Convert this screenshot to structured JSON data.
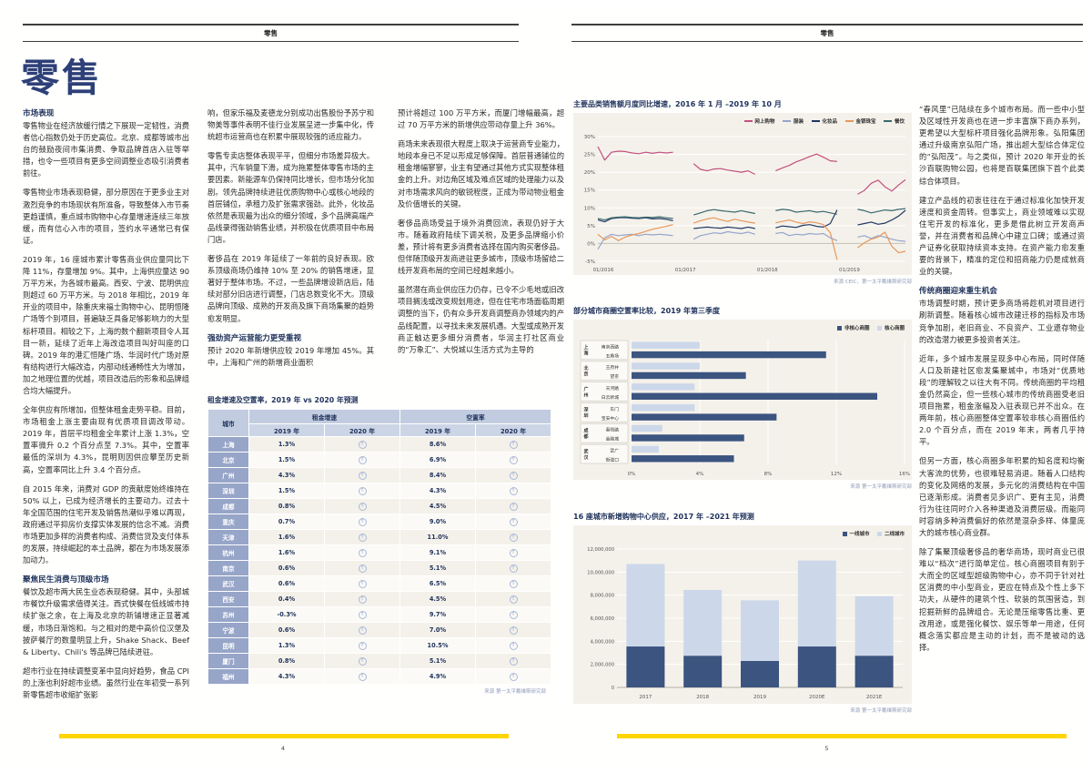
{
  "left_page": {
    "header": "零售",
    "title": "零售",
    "page_number": "4",
    "columns": [
      {
        "blocks": [
          {
            "h": "市场表现"
          },
          {
            "p": "零售物业在经济放缓行情之下展现一定韧性，消费者信心指数仍处于历史高位。北京、成都等城市出台的鼓励夜间市集消费、争取品牌首店入驻等举措，也令一些项目有更多空间调整业态吸引消费者前往。"
          },
          {
            "p": "零售物业市场表现稳健，部分原因在于更多业主对激烈竞争的市场现状有所准备，导致整体入市节奏更趋谨慎，重点城市购物中心存量增速连续三年放缓，而有信心入市的项目，签约水平通常已有保证。"
          },
          {
            "p": "2019 年，16 座城市累计零售商业供应量同比下降 11%，存量增加 9%。其中，上海供应量达 90 万平方米，为各城市最高。西安、宁波、昆明供应则超过 60 万平方米。与 2018 年相比，2019 年开业的项目中，除重庆来福士购物中心、昆明恒隆广场等个别项目，普遍缺乏具备足够影响力的大型标杆项目。相较之下，上海的数个翻新项目令人耳目一新，延续了近年上海改造项目叫好叫座的口碑。2019 年的港汇恒隆广场、华润时代广场对原有结构进行大幅改造，内部动线通畅性大为增加，加之地理位置的优越，项目改造后的形象和品牌组合均大幅提升。"
          },
          {
            "p": "全年供应有所增加，但整体租金走势平稳。目前，市场租金上涨主要由现有优质项目调改带动。2019 年，首层平均租金全年累计上涨 1.3%，空置率微升 0.2 个百分点至 7.3%。其中，空置率最低的深圳为 4.3%，昆明则因供应攀至历史新高，空置率同比上升 3.4 个百分点。"
          },
          {
            "p": "自 2015 年来，消费对 GDP 的贡献度始终维持在 50% 以上，已成为经济增长的主要动力。过去十年全国范围的住宅开发及销售热潮似乎难以再现，政府通过平抑房价支撑实体发展的信念不减。消费市场更加多样的消费者构成、消费信贷及支付体系的发展，持续崛起的本土品牌，都在为市场发展添加动力。"
          },
          {
            "h": "聚焦民生消费与顶级市场"
          },
          {
            "p": "餐饮及超市两大民生业态表现稳健。其中，头部城市餐饮升级需求值得关注。西式快餐在低线城市持续扩张之余，在上海及北京的新铺增速正显著减缓，市场日渐饱和。与之相对的是中高价位汉堡及披萨餐厅的数量明显上升，Shake Shack、Beef & Liberty、Chili's 等品牌已陆续进驻。"
          },
          {
            "p": "超市行业在持续调整变革中显向好趋势，食品 CPI 的上涨也利好超市业绩。虽然行业在年初受一系列新零售超市收缩扩张影"
          }
        ]
      },
      {
        "blocks": [
          {
            "p": "响，但家乐福及麦德龙分别成功出售股份予苏宁和物美等事件表明不佳行业发展呈进一步集中化，传统超市运营商也在积累中展现较强的适应能力。"
          },
          {
            "p": "零售专卖店整体表现平平，但细分市场差异极大。其中，汽车销量下滑，成为拖累整体零售市场的主要因素。新能源车仍保持同比增长，但市场分化加剧。领先品牌持续进驻优质购物中心或核心地段的首层铺位，承租力及扩张需求强劲。此外，化妆品依然是表现最为出众的细分领域，多个品牌高端产品线录得强劲销售业绩，并积极在优质项目中布局门店。"
          },
          {
            "p": "奢侈品在 2019 年延续了一年前的良好表现。欧系顶级商场仍维持 10% 至 20% 的销售增速，显著好于整体市场。不过，一些品牌增设新店后，陆续对部分旧店进行调整，门店总数变化不大。顶级品牌向顶级、成熟的开发商及旗下商场集聚的趋势愈发明显。"
          },
          {
            "h": "强劲资产运营能力更受重视"
          },
          {
            "p": "预计 2020 年新增供应较 2019 年增加 45%。其中，上海和广州的新增商业面积"
          }
        ]
      },
      {
        "blocks": [
          {
            "p": "预计将超过 100 万平方米，而厦门增幅最高，超过 70 万平方米的新增供应带动存量上升 36%。"
          },
          {
            "p": "商场未来表现很大程度上取决于运营商专业能力，地段本身已不足以形成足够保障。首层普通铺位的租金增幅寥寥，业主有望通过其他方式实现整体租金的上升。对边角区域及难点区域的处理能力以及对市场需求风向的敏锐程度，正成为带动物业租金及价值增长的关键。"
          },
          {
            "p": "奢侈品商场受益于境外消费回流，表现仍好于大市。随着政府陆续下调关税，及更多品牌缩小价差，预计将有更多消费者选择在国内购买奢侈品。但伴随顶级开发商进驻更多城市，顶级市场留给二线开发商布局的空间已经越来越小。"
          },
          {
            "p": "虽然潜在商业供应压力仍存，已令不少毛地或旧改项目搁浅或改变规划用途，但在住宅市场面临周期调整的当下，仍有众多开发商调整商办领域内的产品线配置，以寻找未来发展机遇。大型或成熟开发商正触达更多细分消费者，华润主打社区商业的“万象汇”、大悦城以生活方式为主导的"
          }
        ]
      }
    ],
    "table": {
      "title": "租金增速及空置率，2019 年 vs 2020 年预测",
      "col_city": "城市",
      "group_rent": "租金增速",
      "group_vacancy": "空置率",
      "year_2019": "2019 年",
      "year_2020": "2020 年",
      "forecast_arrow": "↑",
      "source": "来源 第一太平戴维斯研究部",
      "rows": [
        {
          "city": "上海",
          "rent_2019": "1.3%",
          "vac_2019": "8.6%"
        },
        {
          "city": "北京",
          "rent_2019": "1.5%",
          "vac_2019": "6.9%"
        },
        {
          "city": "广州",
          "rent_2019": "4.3%",
          "vac_2019": "8.4%"
        },
        {
          "city": "深圳",
          "rent_2019": "1.5%",
          "vac_2019": "4.3%"
        },
        {
          "city": "成都",
          "rent_2019": "0.8%",
          "vac_2019": "4.5%"
        },
        {
          "city": "重庆",
          "rent_2019": "0.7%",
          "vac_2019": "9.0%"
        },
        {
          "city": "天津",
          "rent_2019": "1.6%",
          "vac_2019": "11.0%"
        },
        {
          "city": "杭州",
          "rent_2019": "1.6%",
          "vac_2019": "9.1%"
        },
        {
          "city": "南京",
          "rent_2019": "0.6%",
          "vac_2019": "5.1%"
        },
        {
          "city": "武汉",
          "rent_2019": "0.6%",
          "vac_2019": "6.5%"
        },
        {
          "city": "西安",
          "rent_2019": "0.4%",
          "vac_2019": "4.5%"
        },
        {
          "city": "苏州",
          "rent_2019": "-0.3%",
          "vac_2019": "9.7%"
        },
        {
          "city": "宁波",
          "rent_2019": "0.6%",
          "vac_2019": "7.0%"
        },
        {
          "city": "昆明",
          "rent_2019": "1.3%",
          "vac_2019": "10.5%"
        },
        {
          "city": "厦门",
          "rent_2019": "0.8%",
          "vac_2019": "5.1%"
        },
        {
          "city": "福州",
          "rent_2019": "4.3%",
          "vac_2019": "4.9%"
        }
      ]
    }
  },
  "right_page": {
    "header": "零售",
    "page_number": "5",
    "column_blocks": [
      {
        "p": "“春风里”已陆续在多个城市布局。而一些中小型及区域性开发商也在进一步丰富旗下商办系列，更希望以大型标杆项目强化品牌形象。弘阳集团通过升级南京弘阳广场，推出超大型综合体定位的“弘阳茂”。与之类似，预计 2020 年开业的长沙百联购物公园，也将是百联集团旗下首个此类综合体项目。"
      },
      {
        "p": "建立产品线的初衷往往在于通过标准化加快开发速度和资金周转。但事实上，商业领域难以实现住宅开发的标准化，更多是借此树立开发商声誉，并在消费者和品牌心中建立口碑；或通过资产证券化获取持续资本支持。在资产能力愈发重要的背景下，精准的定位和招商能力仍是成就商业的关键。"
      },
      {
        "h": "传统商圈迎来重生机会"
      },
      {
        "p": "市场调整时期，预计更多商场将趁机对项目进行刷新调整。随着核心城市改建迁移的指标及市场竞争加剧，老旧商业、不良资产、工业遗存物业的改造潜力被更多投资者关注。"
      },
      {
        "p": "近年，多个城市发展呈现多中心布局，同时伴随人口及新建社区愈发集聚城中，市场对“优质地段”的理解较之以往大有不同。传统商圈的平均租金仍然高企，但一些核心城市的传统商圈受老旧项目拖累，租金涨幅及入驻表现已并不出众。在两年前，核心商圈整体空置率较非核心商圈低约 2.0 个百分点，而在 2019 年末，两者几乎持平。"
      },
      {
        "p": "但另一方面，核心商圈多年积累的知名度和均衡大客流的优势，也很难轻易消退。随着人口结构的变化及网络的发展，多元化的消费结构在中国已逐渐形成。消费者见多识广、更有主见，消费行为往往同时介入各种渠道及消费层级。而能同时容纳多种消费偏好的依然是混杂多样、体量庞大的城市核心商业群。"
      },
      {
        "p": "除了集聚顶级奢侈品的奢华商场，现时商业已很难以“档次”进行简单定位。核心商圈项目有别于大而全的区域型超级购物中心，亦不同于针对社区消费的中小型商业，更应在特点及个性上多下功夫，从硬件的建筑个性、软装的氛围营造，到挖掘新鲜的品牌组合。无论是压缩零售比重、更改用途，或是强化餐饮、娱乐等单一用途，任何概念落实都应是主动的计划，而不是被动的选择。"
      }
    ]
  },
  "chart_data": [
    {
      "type": "line",
      "title": "主要品类销售额月度同比增速，2016 年 1 月 –2019 年 10 月",
      "source": "来源 CEIC，第一太平戴维斯研究部",
      "ylim": [
        -5,
        30
      ],
      "yticks": [
        30,
        25,
        20,
        15,
        10,
        5,
        0,
        -5
      ],
      "x_count": 46,
      "xticks": [
        {
          "i": 0,
          "label": "01/2016"
        },
        {
          "i": 12,
          "label": "01/2017"
        },
        {
          "i": 24,
          "label": "01/2018"
        },
        {
          "i": 36,
          "label": "01/2019"
        }
      ],
      "series": [
        {
          "name": "网上购物",
          "color": "#c2527e",
          "values": [
            27.2,
            23.4,
            25.6,
            25.9,
            25.8,
            25.4,
            25.2,
            25.6,
            25.3,
            25.6,
            25.4,
            25.6,
            null,
            null,
            22.4,
            20.8,
            20.4,
            20.9,
            21.0,
            20.6,
            20.3,
            20.0,
            20.4,
            19.4,
            null,
            null,
            20.4,
            21.2,
            21.9,
            22.9,
            23.6,
            24.4,
            25.1,
            24.2,
            23.2,
            23.0,
            null,
            null,
            13.8,
            14.9,
            16.9,
            17.8,
            15.9,
            14.7,
            16.4,
            17.9
          ]
        },
        {
          "name": "服装",
          "color": "#94a5cc",
          "values": [
            -1.6,
            1.6,
            2.6,
            2.2,
            2.4,
            2.6,
            2.2,
            2.6,
            2.4,
            2.6,
            2.4,
            2.2,
            null,
            null,
            1.2,
            2.2,
            2.6,
            3.0,
            2.8,
            3.3,
            3.0,
            2.8,
            3.2,
            2.6,
            null,
            null,
            2.8,
            3.1,
            2.2,
            2.6,
            2.4,
            2.8,
            2.6,
            2.8,
            1.6,
            0.8,
            null,
            null,
            1.8,
            2.2,
            1.4,
            2.2,
            1.8,
            1.2,
            0.8,
            0.6
          ]
        },
        {
          "name": "化妆品",
          "color": "#1f3864",
          "values": [
            6.6,
            6.1,
            7.0,
            7.2,
            7.3,
            7.1,
            7.0,
            7.2,
            6.9,
            7.0,
            6.8,
            6.4,
            null,
            null,
            4.2,
            4.4,
            4.6,
            4.4,
            4.3,
            4.6,
            4.4,
            4.2,
            4.6,
            4.2,
            null,
            null,
            4.4,
            4.9,
            4.7,
            4.5,
            5.1,
            5.3,
            4.8,
            4.6,
            5.6,
            9.4,
            null,
            null,
            5.2,
            5.6,
            6.0,
            5.4,
            5.7,
            6.6,
            7.7,
            9.3
          ]
        },
        {
          "name": "金银珠宝",
          "color": "#e6985c",
          "values": [
            2.6,
            1.0,
            2.0,
            0.8,
            1.8,
            2.4,
            2.8,
            3.4,
            4.0,
            4.4,
            4.8,
            5.3,
            null,
            null,
            5.7,
            6.4,
            6.9,
            7.2,
            6.6,
            6.2,
            6.8,
            6.4,
            6.0,
            5.7,
            null,
            null,
            5.8,
            6.2,
            6.6,
            6.0,
            5.6,
            6.1,
            5.8,
            5.3,
            3.0,
            -4.6,
            null,
            null,
            -1.2,
            0.2,
            1.2,
            1.8,
            3.2,
            -0.8,
            -2.6,
            -2.2
          ]
        },
        {
          "name": "餐饮",
          "color": "#3a6a6e",
          "values": [
            7.0,
            6.6,
            7.2,
            7.4,
            7.5,
            7.3,
            7.2,
            7.4,
            7.3,
            7.5,
            7.2,
            7.0,
            null,
            null,
            8.0,
            8.6,
            9.2,
            9.5,
            9.2,
            9.0,
            8.8,
            9.2,
            8.8,
            8.4,
            null,
            null,
            9.2,
            9.6,
            9.4,
            8.8,
            9.0,
            9.2,
            8.8,
            9.0,
            8.6,
            8.2,
            null,
            null,
            9.6,
            9.2,
            8.6,
            9.0,
            9.4,
            9.2,
            9.6,
            9.8
          ]
        }
      ]
    },
    {
      "type": "bar-horizontal-grouped",
      "title": "部分城市商圈空置率比较，2019 年第三季度",
      "source": "来源 第一太平戴维斯研究部",
      "xmax": 16,
      "x_suffix": "%",
      "xticks": [
        0,
        4,
        8,
        12,
        16
      ],
      "legend": [
        {
          "name": "非核心商圈",
          "color": "#3b5480"
        },
        {
          "name": "核心商圈",
          "color": "#ccd8ea"
        }
      ],
      "groups": [
        {
          "city": "上海",
          "core_label": "南京西路",
          "core": 4.0,
          "noncore_label": "五角场",
          "noncore": 11.4
        },
        {
          "city": "北京",
          "core_label": "王府井",
          "core": 4.0,
          "noncore_label": "望京",
          "noncore": 6.7
        },
        {
          "city": "广州",
          "core_label": "天河路",
          "core": 3.7,
          "noncore_label": "白云新城",
          "noncore": 14.4
        },
        {
          "city": "深圳",
          "core_label": "东门",
          "core": 3.7,
          "noncore_label": "宝安中心",
          "noncore": 8.5
        },
        {
          "city": "成都",
          "core_label": "春熙路",
          "core": 1.8,
          "noncore_label": "金融城",
          "noncore": 6.6
        },
        {
          "city": "武汉",
          "core_label": "武广",
          "core": 1.6,
          "noncore_label": "街道口",
          "noncore": 6.0
        }
      ]
    },
    {
      "type": "bar-stacked",
      "title": "16 座城市新增购物中心供应，2017 年 –2021 年预测",
      "source": "来源 第一太平戴维斯研究部",
      "ymax": 12000000,
      "ytick_step": 2000000,
      "categories": [
        "2017",
        "2018",
        "2019",
        "2020E",
        "2021E"
      ],
      "series": [
        {
          "name": "一线城市",
          "color": "#3b5480",
          "values": [
            3550000,
            2750000,
            2300000,
            3550000,
            2750000
          ]
        },
        {
          "name": "二线城市",
          "color": "#ccd8ea",
          "values": [
            7150000,
            5700000,
            5250000,
            7450000,
            5150000
          ]
        }
      ]
    }
  ],
  "colors": {
    "accent_navy": "#20335c",
    "footer_yellow": "#ffd600",
    "chart_bg": "#f4f1ea",
    "table_city_bg": "#97a5c8",
    "table_header_bg": "#c2cce0"
  }
}
